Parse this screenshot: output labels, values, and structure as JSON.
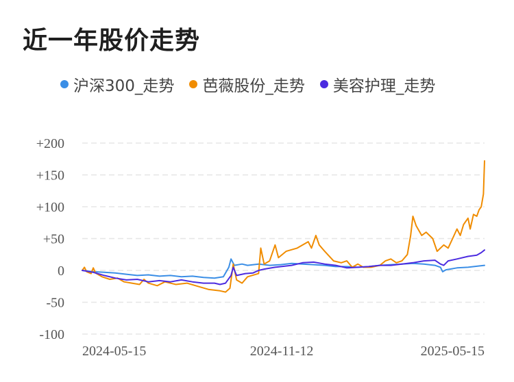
{
  "chart_data": {
    "type": "line",
    "title": "近一年股价走势",
    "xlabel": "",
    "ylabel": "",
    "ylim": [
      -100,
      200
    ],
    "y_ticks": [
      "+200",
      "+150",
      "+100",
      "+50",
      "0",
      "-50",
      "-100"
    ],
    "y_tick_values": [
      200,
      150,
      100,
      50,
      0,
      -50,
      -100
    ],
    "x_ticks": [
      "2024-05-15",
      "2024-11-12",
      "2025-05-15"
    ],
    "x_tick_values": [
      0,
      181,
      365
    ],
    "xlim": [
      0,
      365
    ],
    "grid": true,
    "legend_position": "top",
    "series": [
      {
        "name": "沪深300_走势",
        "color": "#3a8ee6",
        "points": [
          [
            0,
            0
          ],
          [
            10,
            -2
          ],
          [
            20,
            -3
          ],
          [
            30,
            -4
          ],
          [
            40,
            -6
          ],
          [
            50,
            -8
          ],
          [
            60,
            -7
          ],
          [
            70,
            -9
          ],
          [
            80,
            -8
          ],
          [
            90,
            -10
          ],
          [
            100,
            -9
          ],
          [
            110,
            -11
          ],
          [
            120,
            -12
          ],
          [
            128,
            -10
          ],
          [
            133,
            5
          ],
          [
            135,
            18
          ],
          [
            138,
            8
          ],
          [
            145,
            10
          ],
          [
            150,
            8
          ],
          [
            160,
            10
          ],
          [
            170,
            8
          ],
          [
            180,
            9
          ],
          [
            190,
            11
          ],
          [
            200,
            10
          ],
          [
            210,
            9
          ],
          [
            220,
            8
          ],
          [
            230,
            6
          ],
          [
            240,
            6
          ],
          [
            250,
            5
          ],
          [
            260,
            6
          ],
          [
            270,
            8
          ],
          [
            280,
            9
          ],
          [
            290,
            10
          ],
          [
            300,
            11
          ],
          [
            310,
            10
          ],
          [
            320,
            8
          ],
          [
            325,
            5
          ],
          [
            327,
            -2
          ],
          [
            330,
            1
          ],
          [
            340,
            4
          ],
          [
            350,
            5
          ],
          [
            360,
            7
          ],
          [
            365,
            8
          ]
        ]
      },
      {
        "name": "芭薇股份_走势",
        "color": "#f08c00",
        "points": [
          [
            0,
            0
          ],
          [
            2,
            5
          ],
          [
            4,
            -2
          ],
          [
            8,
            -5
          ],
          [
            10,
            4
          ],
          [
            12,
            -4
          ],
          [
            18,
            -10
          ],
          [
            25,
            -14
          ],
          [
            32,
            -12
          ],
          [
            38,
            -18
          ],
          [
            45,
            -20
          ],
          [
            52,
            -22
          ],
          [
            56,
            -14
          ],
          [
            60,
            -20
          ],
          [
            68,
            -24
          ],
          [
            75,
            -18
          ],
          [
            85,
            -22
          ],
          [
            95,
            -20
          ],
          [
            105,
            -25
          ],
          [
            115,
            -30
          ],
          [
            125,
            -32
          ],
          [
            130,
            -34
          ],
          [
            134,
            -28
          ],
          [
            137,
            10
          ],
          [
            140,
            -15
          ],
          [
            145,
            -20
          ],
          [
            150,
            -10
          ],
          [
            160,
            -5
          ],
          [
            162,
            35
          ],
          [
            165,
            10
          ],
          [
            170,
            15
          ],
          [
            175,
            40
          ],
          [
            178,
            20
          ],
          [
            185,
            30
          ],
          [
            195,
            35
          ],
          [
            205,
            45
          ],
          [
            208,
            35
          ],
          [
            212,
            55
          ],
          [
            215,
            40
          ],
          [
            220,
            30
          ],
          [
            228,
            15
          ],
          [
            235,
            12
          ],
          [
            240,
            15
          ],
          [
            245,
            5
          ],
          [
            250,
            10
          ],
          [
            255,
            5
          ],
          [
            262,
            5
          ],
          [
            270,
            8
          ],
          [
            275,
            15
          ],
          [
            280,
            18
          ],
          [
            285,
            12
          ],
          [
            290,
            15
          ],
          [
            295,
            25
          ],
          [
            298,
            55
          ],
          [
            300,
            85
          ],
          [
            303,
            70
          ],
          [
            308,
            55
          ],
          [
            312,
            60
          ],
          [
            318,
            50
          ],
          [
            322,
            30
          ],
          [
            328,
            40
          ],
          [
            332,
            35
          ],
          [
            336,
            50
          ],
          [
            340,
            65
          ],
          [
            343,
            55
          ],
          [
            346,
            72
          ],
          [
            350,
            82
          ],
          [
            352,
            65
          ],
          [
            355,
            88
          ],
          [
            358,
            85
          ],
          [
            360,
            95
          ],
          [
            362,
            100
          ],
          [
            364,
            120
          ],
          [
            365,
            172
          ]
        ]
      },
      {
        "name": "美容护理_走势",
        "color": "#4b2be0",
        "points": [
          [
            0,
            0
          ],
          [
            10,
            -3
          ],
          [
            20,
            -8
          ],
          [
            30,
            -12
          ],
          [
            40,
            -15
          ],
          [
            50,
            -14
          ],
          [
            60,
            -18
          ],
          [
            70,
            -16
          ],
          [
            80,
            -18
          ],
          [
            90,
            -15
          ],
          [
            100,
            -18
          ],
          [
            110,
            -20
          ],
          [
            120,
            -20
          ],
          [
            125,
            -22
          ],
          [
            130,
            -20
          ],
          [
            135,
            -8
          ],
          [
            137,
            5
          ],
          [
            140,
            -8
          ],
          [
            148,
            -5
          ],
          [
            155,
            -4
          ],
          [
            160,
            0
          ],
          [
            165,
            2
          ],
          [
            175,
            5
          ],
          [
            190,
            8
          ],
          [
            200,
            12
          ],
          [
            210,
            13
          ],
          [
            220,
            10
          ],
          [
            230,
            8
          ],
          [
            240,
            4
          ],
          [
            250,
            5
          ],
          [
            260,
            6
          ],
          [
            270,
            8
          ],
          [
            280,
            8
          ],
          [
            290,
            10
          ],
          [
            300,
            12
          ],
          [
            310,
            15
          ],
          [
            320,
            16
          ],
          [
            325,
            10
          ],
          [
            328,
            8
          ],
          [
            332,
            15
          ],
          [
            340,
            18
          ],
          [
            350,
            22
          ],
          [
            358,
            24
          ],
          [
            362,
            28
          ],
          [
            365,
            32
          ]
        ]
      }
    ]
  }
}
